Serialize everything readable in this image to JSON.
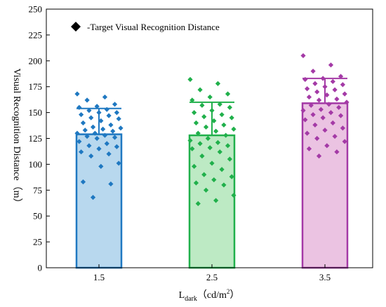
{
  "chart_data": {
    "type": "bar",
    "title": "",
    "xlabel": "L",
    "xlabel_sub": "dark",
    "xlabel_unit": "（cd/m",
    "xlabel_sup": "2",
    "xlabel_close": "）",
    "ylabel": "Visual Recognition Distance（m）",
    "ylim": [
      0,
      250
    ],
    "yticks": [
      0,
      25,
      50,
      75,
      100,
      125,
      150,
      175,
      200,
      225,
      250
    ],
    "categories": [
      "1.5",
      "2.5",
      "3.5"
    ],
    "values": [
      129,
      128,
      159
    ],
    "error_upper": [
      154,
      160,
      183
    ],
    "colors": {
      "fill": [
        "#b8d8ee",
        "#bdeac4",
        "#ebc3e2"
      ],
      "stroke": [
        "#1f78c1",
        "#20b04b",
        "#a43aa6"
      ]
    },
    "legend": {
      "label": "-Target Visual Recognition Distance",
      "marker": "diamond",
      "position": "top-left"
    },
    "points": [
      [
        168,
        165,
        162,
        158,
        156,
        155,
        153,
        152,
        150,
        150,
        148,
        147,
        145,
        144,
        142,
        140,
        138,
        136,
        135,
        134,
        133,
        132,
        130,
        130,
        128,
        127,
        126,
        125,
        122,
        120,
        118,
        117,
        115,
        112,
        110,
        108,
        101,
        98,
        83,
        81,
        68
      ],
      [
        182,
        178,
        172,
        168,
        165,
        162,
        158,
        157,
        155,
        152,
        150,
        148,
        146,
        145,
        142,
        140,
        138,
        136,
        134,
        132,
        130,
        128,
        125,
        123,
        121,
        120,
        118,
        116,
        115,
        112,
        108,
        105,
        101,
        98,
        95,
        90,
        88,
        85,
        82,
        80,
        75,
        70,
        65,
        62
      ],
      [
        205,
        196,
        190,
        185,
        183,
        182,
        180,
        178,
        177,
        175,
        173,
        172,
        170,
        168,
        167,
        165,
        163,
        162,
        160,
        158,
        157,
        155,
        153,
        152,
        150,
        148,
        147,
        145,
        143,
        140,
        138,
        135,
        133,
        130,
        127,
        125,
        122,
        118,
        115,
        112,
        108
      ]
    ]
  }
}
